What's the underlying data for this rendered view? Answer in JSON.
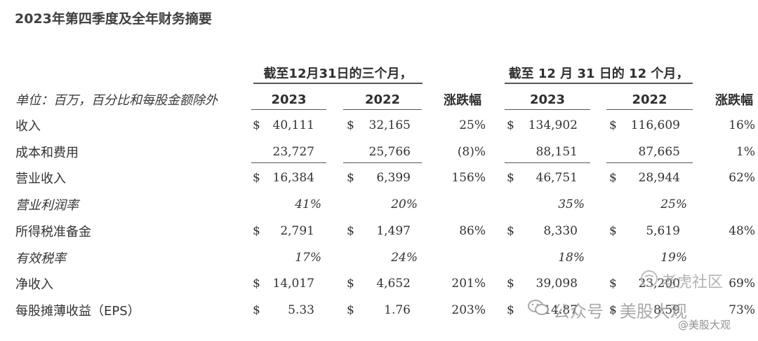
{
  "title": "2023年第四季度及全年财务摘要",
  "periods": {
    "quarter": "截至12月31日的三个月，",
    "full_year": "截至 12 月 31 日的 12 个月，"
  },
  "unit_label": "单位：百万，百分比和每股金额除外",
  "headers": {
    "q_2023": "2023",
    "q_2022": "2022",
    "q_change": "涨跌幅",
    "y_2023": "2023",
    "y_2022": "2022",
    "y_change": "涨跌幅"
  },
  "currency_symbol": "$",
  "rows": [
    {
      "label": "收入",
      "italic": false,
      "currency": true,
      "underline": false,
      "q2023": "40,111",
      "q2022": "32,165",
      "qchg": "25%",
      "y2023": "134,902",
      "y2022": "116,609",
      "ychg": "16%"
    },
    {
      "label": "成本和费用",
      "italic": false,
      "currency": false,
      "underline": true,
      "q2023": "23,727",
      "q2022": "25,766",
      "qchg": "(8)%",
      "y2023": "88,151",
      "y2022": "87,665",
      "ychg": "1%"
    },
    {
      "label": "营业收入",
      "italic": false,
      "currency": true,
      "underline": false,
      "q2023": "16,384",
      "q2022": "6,399",
      "qchg": "156%",
      "y2023": "46,751",
      "y2022": "28,944",
      "ychg": "62%"
    },
    {
      "label": "营业利润率",
      "italic": true,
      "currency": false,
      "underline": false,
      "q2023": "41%",
      "q2022": "20%",
      "qchg": "",
      "y2023": "35%",
      "y2022": "25%",
      "ychg": ""
    },
    {
      "label": "所得税准备金",
      "italic": false,
      "currency": true,
      "underline": false,
      "q2023": "2,791",
      "q2022": "1,497",
      "qchg": "86%",
      "y2023": "8,330",
      "y2022": "5,619",
      "ychg": "48%"
    },
    {
      "label": "有效税率",
      "italic": true,
      "currency": false,
      "underline": false,
      "q2023": "17%",
      "q2022": "24%",
      "qchg": "",
      "y2023": "18%",
      "y2022": "19%",
      "ychg": ""
    },
    {
      "label": "净收入",
      "italic": false,
      "currency": true,
      "underline": false,
      "q2023": "14,017",
      "q2022": "4,652",
      "qchg": "201%",
      "y2023": "39,098",
      "y2022": "23,200",
      "ychg": "69%"
    },
    {
      "label": "每股摊薄收益（EPS）",
      "italic": false,
      "currency": true,
      "underline": false,
      "q2023": "5.33",
      "q2022": "1.76",
      "qchg": "203%",
      "y2023": "14.87",
      "y2022": "8.59",
      "ychg": "73%"
    }
  ],
  "watermark": {
    "wechat": "公众号 · 美股大观",
    "tiger": "老虎社区",
    "handle": "@美股大观"
  }
}
